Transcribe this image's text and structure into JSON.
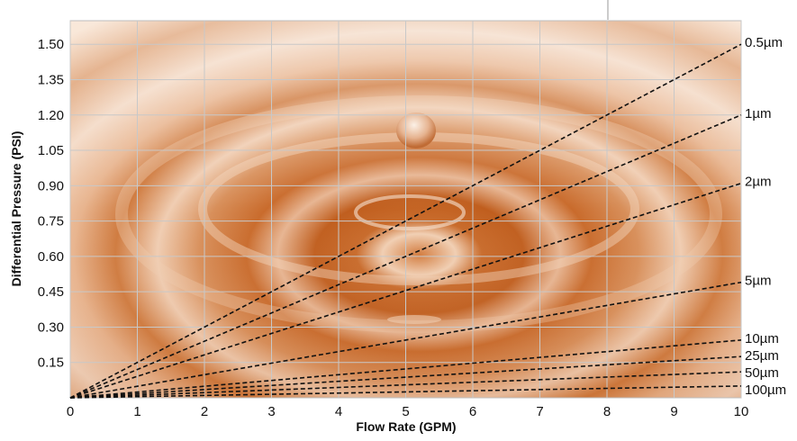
{
  "chart_data": {
    "type": "line",
    "title": "",
    "xlabel": "Flow Rate (GPM)",
    "ylabel": "Differential Pressure (PSI)",
    "xlim": [
      0,
      10
    ],
    "ylim": [
      0,
      1.6
    ],
    "x_ticks": [
      "0",
      "1",
      "2",
      "3",
      "4",
      "5",
      "6",
      "7",
      "8",
      "9",
      "10"
    ],
    "y_ticks": [
      "0.15",
      "0.30",
      "0.45",
      "0.60",
      "0.75",
      "0.90",
      "1.05",
      "1.20",
      "1.35",
      "1.50"
    ],
    "grid": true,
    "line_style": "dashed",
    "line_color": "#111111",
    "label_placement": "right",
    "background": "water-drop-ripple-photo",
    "background_colors": {
      "dark": "#c2601f",
      "mid": "#dc9a6a",
      "light": "#f6dcc6"
    },
    "series": [
      {
        "name": "0.5µm",
        "x": [
          0,
          10
        ],
        "y": [
          0,
          1.5
        ]
      },
      {
        "name": "1µm",
        "x": [
          0,
          10
        ],
        "y": [
          0,
          1.2
        ]
      },
      {
        "name": "2µm",
        "x": [
          0,
          10
        ],
        "y": [
          0,
          0.91
        ]
      },
      {
        "name": "5µm",
        "x": [
          0,
          10
        ],
        "y": [
          0,
          0.49
        ]
      },
      {
        "name": "10µm",
        "x": [
          0,
          10
        ],
        "y": [
          0,
          0.245
        ]
      },
      {
        "name": "25µm",
        "x": [
          0,
          10
        ],
        "y": [
          0,
          0.175
        ]
      },
      {
        "name": "50µm",
        "x": [
          0,
          10
        ],
        "y": [
          0,
          0.11
        ]
      },
      {
        "name": "100µm",
        "x": [
          0,
          10
        ],
        "y": [
          0,
          0.05
        ]
      }
    ]
  }
}
